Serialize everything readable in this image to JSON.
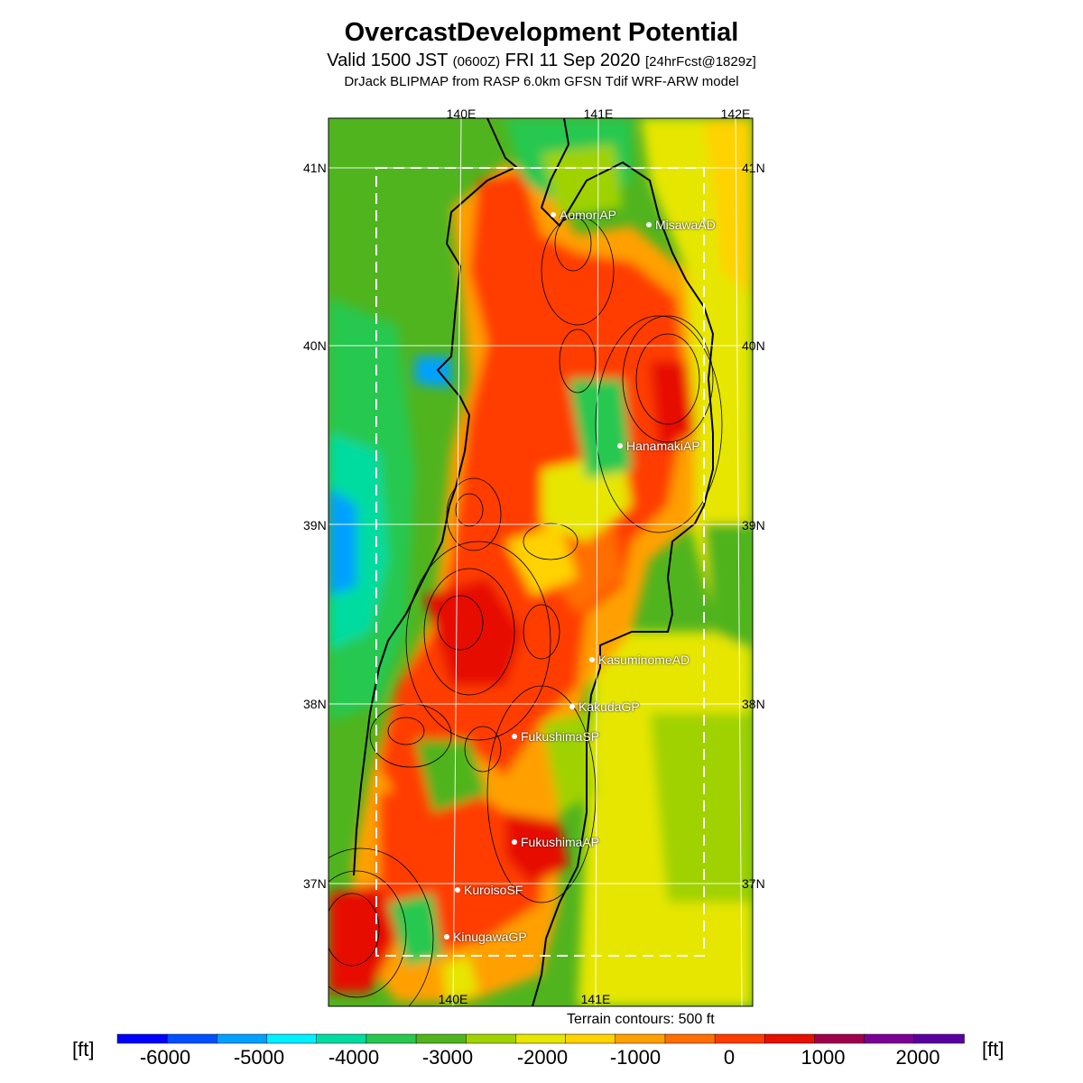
{
  "title": "OvercastDevelopment Potential",
  "subtitle": {
    "valid_prefix": "Valid 1500 JST",
    "utc": "(0600Z)",
    "date": "FRI 11 Sep 2020",
    "forecast": "[24hrFcst@1829z]"
  },
  "model_line": "DrJack BLIPMAP from RASP 6.0km GFSN Tdif WRF-ARW model",
  "map": {
    "lon_labels_top": [
      "140E",
      "141E",
      "142E"
    ],
    "lon_labels_bottom": [
      "140E",
      "141E"
    ],
    "lat_labels": [
      "41N",
      "40N",
      "39N",
      "38N",
      "37N"
    ],
    "stations": [
      {
        "name": "AomoriAP"
      },
      {
        "name": "MisawaAD"
      },
      {
        "name": "HanamakiAP"
      },
      {
        "name": "KasuminomeAD"
      },
      {
        "name": "KakudaGP"
      },
      {
        "name": "FukushimaSP"
      },
      {
        "name": "FukushimaAP"
      },
      {
        "name": "KuroisoSF"
      },
      {
        "name": "KinugawaGP"
      }
    ],
    "terrain_note": "Terrain contours: 500 ft"
  },
  "colorbar": {
    "unit": "[ft]",
    "tick_labels": [
      "-6000",
      "-5000",
      "-4000",
      "-3000",
      "-2000",
      "-1000",
      "0",
      "1000",
      "2000"
    ],
    "colors": [
      "#0000ff",
      "#0050ff",
      "#00a0ff",
      "#00f0ff",
      "#00dca0",
      "#28c850",
      "#50b41e",
      "#a0d200",
      "#e6e600",
      "#ffd200",
      "#ffa000",
      "#ff6e00",
      "#ff3c00",
      "#e60f00",
      "#a0004b",
      "#7a0096",
      "#5a00a0"
    ]
  }
}
